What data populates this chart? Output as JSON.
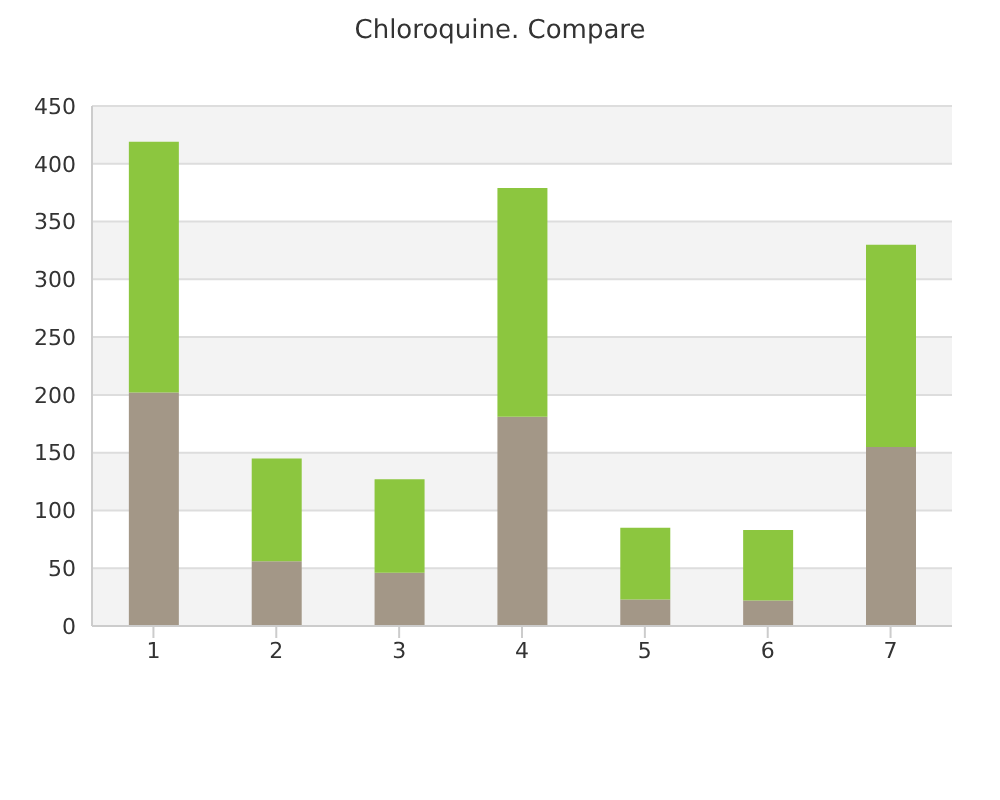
{
  "chart_data": {
    "type": "bar",
    "title": "Chloroquine. Compare",
    "categories": [
      "1",
      "2",
      "3",
      "4",
      "5",
      "6",
      "7"
    ],
    "stacked": true,
    "series": [
      {
        "color": "#a39787",
        "values": [
          202,
          56,
          46,
          181,
          23,
          22,
          155
        ]
      },
      {
        "color": "#8cc63f",
        "values": [
          217,
          89,
          81,
          198,
          62,
          61,
          175
        ]
      }
    ],
    "ylim": [
      0,
      450
    ],
    "yticks": [
      0,
      50,
      100,
      150,
      200,
      250,
      300,
      350,
      400,
      450
    ],
    "grid": "y"
  }
}
